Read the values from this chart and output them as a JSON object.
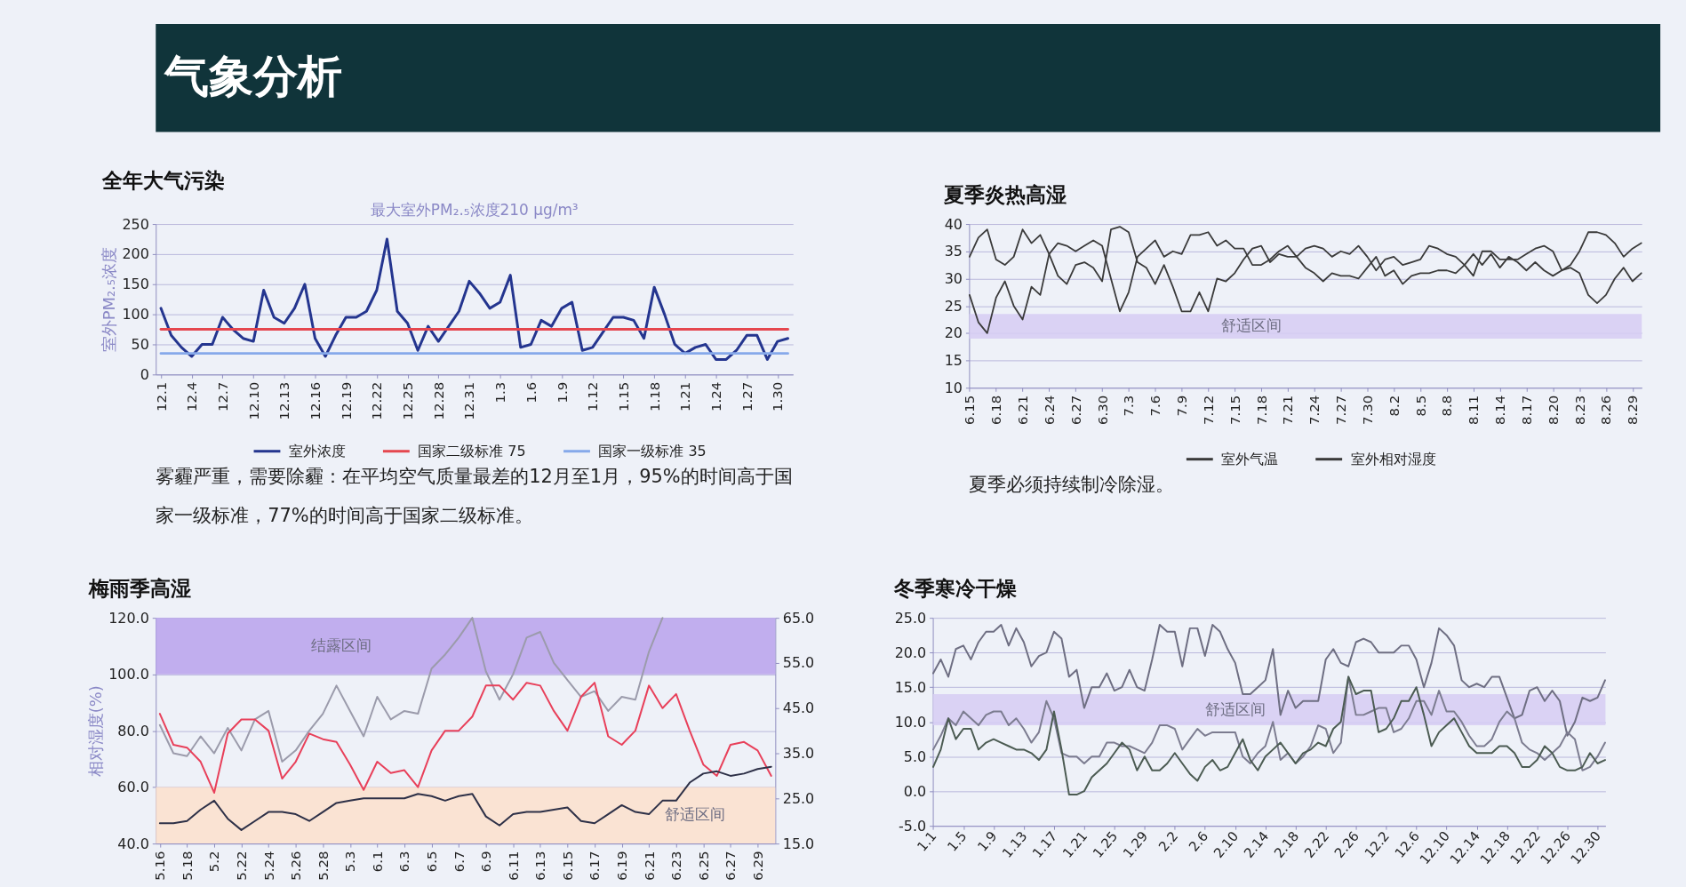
{
  "chart_data": [
    {
      "type": "other",
      "title": "气象分析"
    },
    {
      "type": "line",
      "title": "全年大气污染",
      "subtitle": "最大室外PM₂.₅浓度210 μg/m³",
      "ylabel": "室外PM₂.₅浓度",
      "categories": [
        "12.1",
        null,
        null,
        "12.4",
        null,
        null,
        "12.7",
        null,
        null,
        "12.10",
        null,
        null,
        "12.13",
        null,
        null,
        "12.16",
        null,
        null,
        "12.19",
        null,
        null,
        "12.22",
        null,
        null,
        "12.25",
        null,
        null,
        "12.28",
        null,
        null,
        "12.31",
        null,
        null,
        "1.3",
        null,
        null,
        "1.6",
        null,
        null,
        "1.9",
        null,
        null,
        "1.12",
        null,
        null,
        "1.15",
        null,
        null,
        "1.18",
        null,
        null,
        "1.21",
        null,
        null,
        "1.24",
        null,
        null,
        "1.27",
        null,
        null,
        "1.30",
        null
      ],
      "series": [
        {
          "name": "室外浓度",
          "color": "#24358f",
          "values": [
            110,
            65,
            45,
            30,
            50,
            50,
            95,
            75,
            60,
            55,
            140,
            95,
            85,
            110,
            150,
            60,
            30,
            65,
            95,
            95,
            105,
            140,
            225,
            105,
            85,
            40,
            80,
            55,
            80,
            105,
            155,
            135,
            110,
            120,
            165,
            45,
            50,
            90,
            80,
            110,
            120,
            40,
            45,
            70,
            95,
            95,
            90,
            60,
            145,
            100,
            50,
            35,
            45,
            50,
            25,
            25,
            40,
            65,
            65,
            25,
            55,
            60
          ]
        },
        {
          "name": "国家二级标准 75",
          "color": "#e5474f",
          "values": [
            75,
            75,
            75,
            75,
            75,
            75,
            75,
            75,
            75,
            75,
            75,
            75,
            75,
            75,
            75,
            75,
            75,
            75,
            75,
            75,
            75,
            75,
            75,
            75,
            75,
            75,
            75,
            75,
            75,
            75,
            75,
            75,
            75,
            75,
            75,
            75,
            75,
            75,
            75,
            75,
            75,
            75,
            75,
            75,
            75,
            75,
            75,
            75,
            75,
            75,
            75,
            75,
            75,
            75,
            75,
            75,
            75,
            75,
            75,
            75,
            75,
            75
          ]
        },
        {
          "name": "国家一级标准 35",
          "color": "#86a9ea",
          "values": [
            35,
            35,
            35,
            35,
            35,
            35,
            35,
            35,
            35,
            35,
            35,
            35,
            35,
            35,
            35,
            35,
            35,
            35,
            35,
            35,
            35,
            35,
            35,
            35,
            35,
            35,
            35,
            35,
            35,
            35,
            35,
            35,
            35,
            35,
            35,
            35,
            35,
            35,
            35,
            35,
            35,
            35,
            35,
            35,
            35,
            35,
            35,
            35,
            35,
            35,
            35,
            35,
            35,
            35,
            35,
            35,
            35,
            35,
            35,
            35,
            35,
            35
          ]
        }
      ],
      "ylim": [
        0,
        250
      ],
      "yticks": [
        0,
        50,
        100,
        150,
        200,
        250
      ],
      "grid": "y",
      "legend": "bottom",
      "annotations": [
        "雾霾严重，需要除霾：在平均空气质量最差的12月至1月，95%的时间高于国家一级标准，77%的时间高于国家二级标准。"
      ]
    },
    {
      "type": "line",
      "title": "夏季炎热高湿",
      "categories": [
        "6.15",
        null,
        null,
        "6.18",
        null,
        null,
        "6.21",
        null,
        null,
        "6.24",
        null,
        null,
        "6.27",
        null,
        null,
        "6.30",
        null,
        null,
        "7.3",
        null,
        null,
        "7.6",
        null,
        null,
        "7.9",
        null,
        null,
        "7.12",
        null,
        null,
        "7.15",
        null,
        null,
        "7.18",
        null,
        null,
        "7.21",
        null,
        null,
        "7.24",
        null,
        null,
        "7.27",
        null,
        null,
        "7.30",
        null,
        null,
        "8.2",
        null,
        null,
        "8.5",
        null,
        null,
        "8.8",
        null,
        null,
        "8.11",
        null,
        null,
        "8.14",
        null,
        null,
        "8.17",
        null,
        null,
        "8.20",
        null,
        null,
        "8.23",
        null,
        null,
        "8.26",
        null,
        null,
        "8.29",
        null
      ],
      "series": [
        {
          "name": "室外气温",
          "color": "#3a3a3a",
          "values": [
            34,
            37.5,
            39,
            33.5,
            32.5,
            34,
            39,
            36.5,
            38,
            34.5,
            30.5,
            29,
            32.5,
            33,
            32,
            29.5,
            39,
            39.5,
            38.5,
            33,
            32,
            29,
            32.5,
            28.5,
            24,
            24,
            27.5,
            24,
            30,
            29.5,
            31,
            33.5,
            35.5,
            36,
            33,
            34.5,
            34,
            34,
            32,
            31,
            29.5,
            31,
            30.5,
            30.5,
            30,
            32,
            34,
            30.5,
            31.5,
            29,
            30.5,
            31,
            31,
            31.5,
            31.5,
            31,
            32.5,
            34.5,
            32.5,
            34.5,
            32,
            34,
            33,
            31.5,
            33,
            31.5,
            30.5,
            31.5,
            32,
            31,
            27,
            25.5,
            27,
            30,
            32,
            29.5,
            31
          ]
        },
        {
          "name": "室外相对湿度",
          "color": "#3a3a3a",
          "values": [
            27,
            22,
            20,
            26.5,
            29.5,
            25,
            22.5,
            28.5,
            27,
            34.5,
            36.5,
            36,
            35,
            36,
            37,
            36,
            30,
            24,
            27.5,
            34,
            35.5,
            37,
            34,
            35,
            34.5,
            38,
            38,
            38.5,
            36,
            37,
            35.5,
            35.5,
            32.5,
            32.5,
            33.5,
            35,
            36,
            34,
            35.5,
            36,
            35.5,
            34,
            35,
            34.5,
            36,
            34,
            31.5,
            33.5,
            34,
            32.5,
            33,
            33.5,
            36,
            35.5,
            34.5,
            34,
            32.5,
            30.5,
            35,
            35,
            33.5,
            33.5,
            33.5,
            34.5,
            35.5,
            36,
            35,
            31.5,
            32.5,
            35,
            38.5,
            38.5,
            38,
            36.5,
            34,
            35.5,
            36.5
          ]
        }
      ],
      "ylim": [
        10,
        40
      ],
      "yticks": [
        10,
        15,
        20,
        25,
        30,
        35,
        40
      ],
      "grid": "y",
      "legend": "bottom",
      "bands": [
        {
          "axis": "y",
          "from": 19,
          "to": 23.5,
          "label": "舒适区间",
          "color": "#d6cdf3"
        }
      ],
      "annotations": [
        "夏季必须持续制冷除湿。"
      ]
    },
    {
      "type": "line",
      "title": "梅雨季高湿",
      "ylabel": "相对湿度(%)",
      "categories": [
        "5.16",
        null,
        "5.18",
        null,
        "5.2",
        null,
        "5.22",
        null,
        "5.24",
        null,
        "5.26",
        null,
        "5.28",
        null,
        "5.3",
        null,
        "6.1",
        null,
        "6.3",
        null,
        "6.5",
        null,
        "6.7",
        null,
        "6.9",
        null,
        "6.11",
        null,
        "6.13",
        null,
        "6.15",
        null,
        "6.17",
        null,
        "6.19",
        null,
        "6.21",
        null,
        "6.23",
        null,
        "6.25",
        null,
        "6.27",
        null,
        "6.29",
        null
      ],
      "series": [
        {
          "color": "#9b9bab",
          "values": [
            82,
            72,
            71,
            78,
            72,
            81,
            73,
            84,
            87,
            69,
            73,
            80,
            86,
            96,
            87,
            78,
            92,
            84,
            87,
            86,
            102,
            107,
            113,
            120,
            101,
            91,
            100,
            113,
            115,
            104,
            98,
            92,
            94,
            87,
            92,
            91,
            108,
            120,
            null,
            null,
            null,
            null,
            null,
            null,
            null,
            null
          ]
        },
        {
          "color": "#e8405a",
          "values": [
            86,
            75,
            74,
            69,
            58,
            79,
            84,
            84,
            80,
            63,
            69,
            79,
            77,
            76,
            68,
            59,
            69,
            65,
            66,
            60,
            73,
            80,
            80,
            85,
            96,
            96,
            91,
            97,
            96,
            87,
            80,
            92,
            97,
            78,
            75,
            80,
            96,
            88,
            93,
            80,
            68,
            64,
            75,
            76,
            73,
            64
          ]
        },
        {
          "color": "#2d3047",
          "axis": "y2",
          "values": [
            19.5,
            19.5,
            20,
            22.5,
            24.5,
            20.5,
            18,
            20,
            22,
            22,
            21.5,
            20,
            22,
            24,
            24.5,
            25,
            25,
            25,
            25,
            26,
            25.5,
            24.5,
            25.5,
            26,
            21,
            19,
            21.5,
            22,
            22,
            22.5,
            23,
            20,
            19.5,
            21.5,
            23.5,
            22,
            21.5,
            24.5,
            24.5,
            28.5,
            30.5,
            31,
            30,
            30.5,
            31.5,
            32
          ]
        }
      ],
      "ylim": [
        40,
        120
      ],
      "yticks": [
        {
          "value": 40,
          "label": "40.0"
        },
        {
          "value": 60,
          "label": "60.0"
        },
        {
          "value": 80,
          "label": "80.0"
        },
        {
          "value": 100,
          "label": "100.0"
        },
        {
          "value": 120,
          "label": "120.0"
        }
      ],
      "y2lim": [
        15,
        65
      ],
      "y2ticks": [
        {
          "value": 15,
          "label": "15.0"
        },
        {
          "value": 25,
          "label": "25.0"
        },
        {
          "value": 35,
          "label": "35.0"
        },
        {
          "value": 45,
          "label": "45.0"
        },
        {
          "value": 55,
          "label": "55.0"
        },
        {
          "value": 65,
          "label": "65.0"
        }
      ],
      "grid": "y",
      "bands": [
        {
          "axis": "y",
          "from": 100,
          "to": 120,
          "label": "结露区间",
          "color": "#b9a2ec"
        },
        {
          "axis": "y",
          "from": 40,
          "to": 60,
          "label": "舒适区间",
          "color": "#fbe1cd"
        }
      ]
    },
    {
      "type": "line",
      "title": "冬季寒冷干燥",
      "categories": [
        "1.1",
        null,
        null,
        null,
        "1.5",
        null,
        null,
        null,
        "1.9",
        null,
        null,
        null,
        "1.13",
        null,
        null,
        null,
        "1.17",
        null,
        null,
        null,
        "1.21",
        null,
        null,
        null,
        "1.25",
        null,
        null,
        null,
        "1.29",
        null,
        null,
        null,
        "2.2",
        null,
        null,
        null,
        "2.6",
        null,
        null,
        null,
        "2.10",
        null,
        null,
        null,
        "2.14",
        null,
        null,
        null,
        "2.18",
        null,
        null,
        null,
        "2.22",
        null,
        null,
        null,
        "2.26",
        null,
        null,
        null,
        "12.2",
        null,
        null,
        null,
        "12.6",
        null,
        null,
        null,
        "12.10",
        null,
        null,
        null,
        "12.14",
        null,
        null,
        null,
        "12.18",
        null,
        null,
        null,
        "12.22",
        null,
        null,
        null,
        "12.26",
        null,
        null,
        null,
        "12.30",
        null
      ],
      "series": [
        {
          "color": "#6e6e82",
          "values": [
            17,
            19,
            16.5,
            20.5,
            21,
            19,
            21.5,
            23,
            23,
            24,
            21,
            23.5,
            21.5,
            18,
            19.5,
            20,
            23,
            22,
            16.5,
            17.5,
            12,
            15,
            15,
            17,
            14.5,
            15,
            17.5,
            15,
            14.5,
            19,
            24,
            23,
            23,
            18,
            23.5,
            23.5,
            19.5,
            24,
            23,
            20.5,
            18.5,
            14,
            14,
            15,
            16,
            20.5,
            11,
            14.5,
            12,
            13,
            13,
            13,
            19,
            20.5,
            18.5,
            18,
            21.5,
            22,
            21.5,
            20,
            20,
            20,
            21,
            21,
            19,
            15,
            18.5,
            23.5,
            22.5,
            21,
            16,
            15,
            15.5,
            15,
            16.5,
            16.5,
            13.5,
            10.5,
            11,
            14.5,
            15,
            13,
            14.5,
            13,
            8,
            10,
            13.5,
            13,
            13.5,
            16
          ]
        },
        {
          "color": "#7c7c90",
          "values": [
            6,
            8,
            10.5,
            9.5,
            11.5,
            10.5,
            9.5,
            11,
            11.5,
            11.5,
            9.5,
            10.5,
            9,
            7,
            8.5,
            13,
            10.5,
            5.5,
            5,
            5,
            4,
            5,
            5,
            7,
            7,
            6.5,
            6.5,
            6,
            5.5,
            7,
            9.5,
            9.5,
            9,
            6,
            7.5,
            9,
            8,
            8.5,
            8.5,
            8.5,
            8.5,
            5,
            4,
            5.5,
            6.5,
            10,
            4.5,
            5.5,
            4,
            5,
            6.5,
            9.5,
            9,
            5.5,
            7,
            16.5,
            11,
            11,
            11.5,
            12,
            12,
            8.5,
            9,
            10.5,
            13,
            13,
            11,
            14.5,
            11.5,
            11.5,
            10,
            8,
            6.5,
            6.5,
            7.5,
            10,
            11.5,
            10.5,
            7,
            6,
            5.5,
            4.5,
            5.5,
            6.5,
            8.5,
            7.5,
            3,
            3.5,
            5,
            7
          ]
        },
        {
          "color": "#4b5b52",
          "values": [
            3.5,
            6,
            10.5,
            7.5,
            9,
            9,
            6,
            7,
            7.5,
            7,
            6.5,
            6,
            6,
            5.5,
            4.5,
            6,
            11.5,
            6,
            -0.5,
            -0.5,
            0,
            2,
            3,
            4,
            5.5,
            7,
            6,
            3,
            5,
            3,
            3,
            4,
            5.5,
            4,
            2.5,
            1.5,
            3.5,
            4.5,
            3,
            3.5,
            5.5,
            7.5,
            4.5,
            3,
            5,
            6,
            7,
            5.5,
            4,
            5.5,
            6,
            7,
            6.5,
            9,
            10,
            16.5,
            14,
            14.5,
            14.5,
            8.5,
            9,
            10.5,
            13,
            13,
            15,
            11,
            6.5,
            8.5,
            9.5,
            10.5,
            8.5,
            6.5,
            5.5,
            5.5,
            5.5,
            6.5,
            6.5,
            5.5,
            3.5,
            3.5,
            4.5,
            6.5,
            5.5,
            3.5,
            3,
            3,
            3.5,
            5.5,
            4,
            4.5
          ]
        }
      ],
      "ylim": [
        -5,
        25
      ],
      "yticks": [
        {
          "value": -5,
          "label": "-5.0"
        },
        {
          "value": 0,
          "label": "0.0"
        },
        {
          "value": 5,
          "label": "5.0"
        },
        {
          "value": 10,
          "label": "10.0"
        },
        {
          "value": 15,
          "label": "15.0"
        },
        {
          "value": 20,
          "label": "20.0"
        },
        {
          "value": 25,
          "label": "25.0"
        }
      ],
      "grid": "y",
      "bands": [
        {
          "axis": "y",
          "from": 9.5,
          "to": 14,
          "label": "舒适区间",
          "color": "#d6cdf3"
        }
      ]
    }
  ]
}
